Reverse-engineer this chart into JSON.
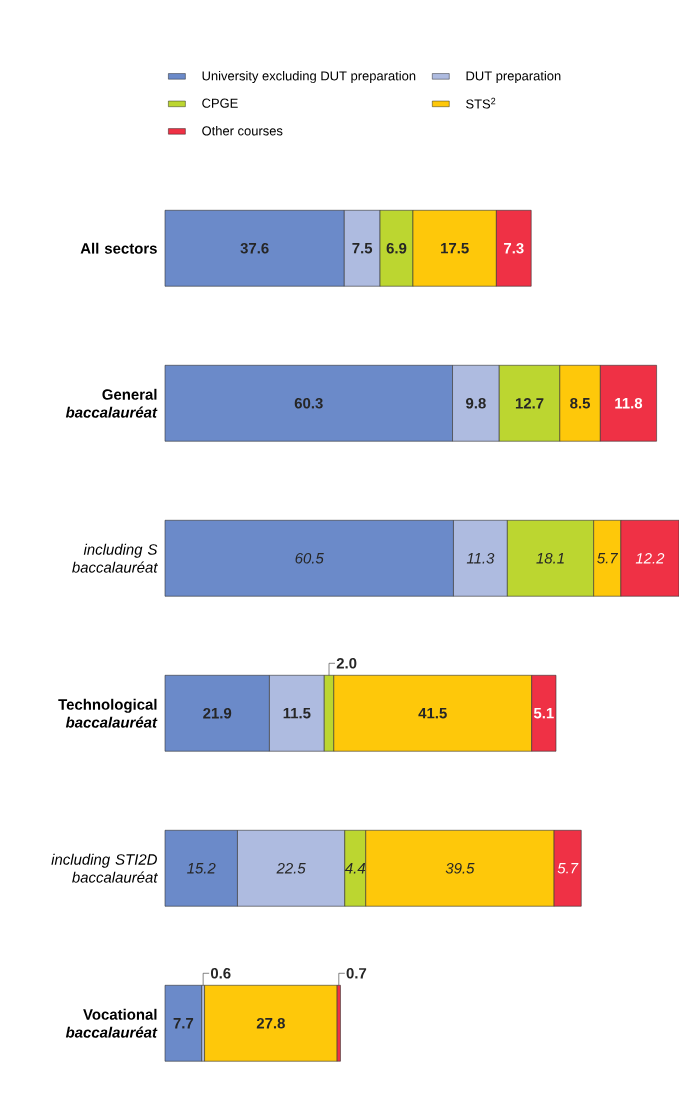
{
  "chart_data": {
    "type": "bar",
    "orientation": "horizontal",
    "stacked": true,
    "legend": "top",
    "categories": [
      "All sectors",
      "General *baccalauréat*",
      "including S baccalauréat",
      "Technological *baccalauréat*",
      "including STI2D baccalauréat",
      "Vocational *baccalauréat*"
    ],
    "series": [
      {
        "name": "University excluding DUT preparation",
        "color": "#6b8ac9",
        "values": [
          37.6,
          60.3,
          60.5,
          21.9,
          15.2,
          7.7
        ],
        "value_labels": [
          "37.6",
          "60.3",
          "60.5",
          "21.9",
          "15.2",
          "7.7"
        ]
      },
      {
        "name": "DUT preparation",
        "color": "#aebbe0",
        "values": [
          7.5,
          9.8,
          11.3,
          11.5,
          22.5,
          0.6
        ],
        "value_labels": [
          "7.5",
          "9.8",
          "11.3",
          "11.5",
          "22.5",
          "0.6"
        ]
      },
      {
        "name": "CPGE",
        "color": "#bcd630",
        "values": [
          6.9,
          12.7,
          18.1,
          2.0,
          4.4,
          null
        ],
        "value_labels": [
          "6.9",
          "12.7",
          "18.1",
          "2.0",
          "4.4",
          null
        ]
      },
      {
        "name": "STS$^{2}$",
        "color": "#fec80a",
        "values": [
          17.5,
          8.5,
          5.7,
          41.5,
          39.5,
          27.8
        ],
        "value_labels": [
          "17.5",
          "8.5",
          "5.7",
          "41.5",
          "39.5",
          "27.8"
        ]
      },
      {
        "name": "Other courses",
        "color": "#ef3145",
        "values": [
          7.3,
          11.8,
          12.2,
          5.1,
          5.7,
          0.7
        ],
        "value_labels": [
          "7.3",
          "11.8",
          "12.2",
          "5.1",
          "5.7",
          "0.7"
        ]
      }
    ]
  }
}
